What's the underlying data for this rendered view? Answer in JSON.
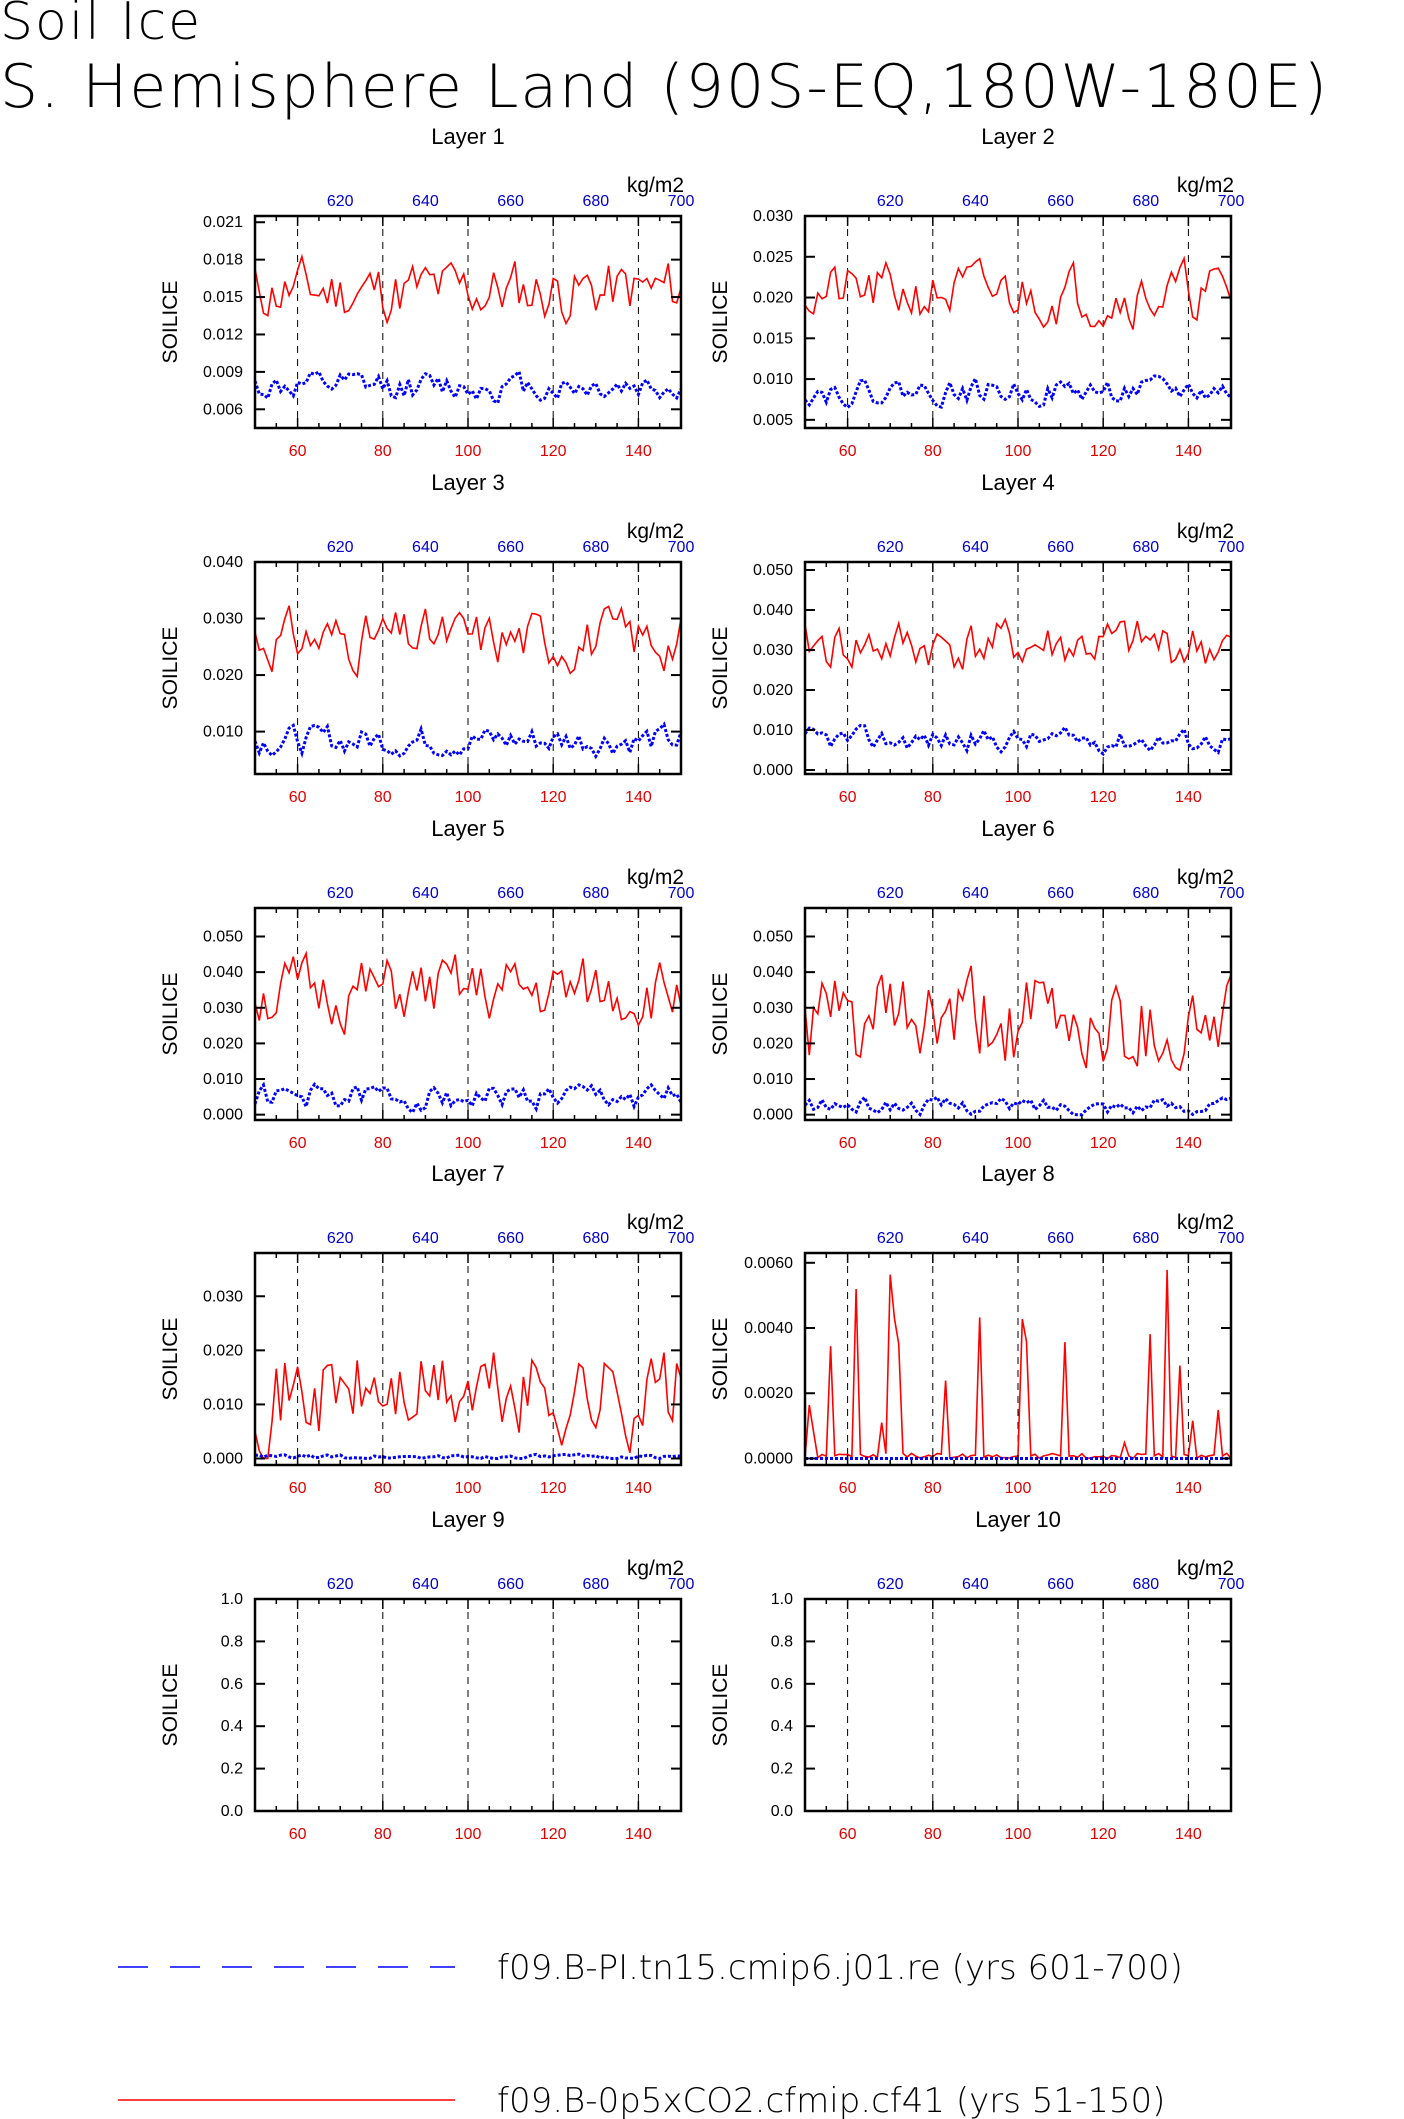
{
  "title_line1": "Soil Ice",
  "title_line2": "S. Hemisphere Land (90S-EQ,180W-180E)",
  "legend": [
    {
      "label": "f09.B-PI.tn15.cmip6.j01.re (yrs 601-700)",
      "color": "#0000ff",
      "style": "dashed"
    },
    {
      "label": "f09.B-0p5xCO2.cfmip.cf41 (yrs 51-150)",
      "color": "#ff0000",
      "style": "solid"
    }
  ],
  "chart_data": [
    {
      "type": "line",
      "title": "Layer 1",
      "ylabel": "SOILICE",
      "x2label": "kg/m2",
      "xlim": [
        50,
        150
      ],
      "x2lim": [
        600,
        700
      ],
      "ylim": [
        0.0045,
        0.0215
      ],
      "yticks": [
        "0.006",
        "0.009",
        "0.012",
        "0.015",
        "0.018",
        "0.021"
      ],
      "xticks": [
        "60",
        "80",
        "100",
        "120",
        "140"
      ],
      "x2ticks": [
        "620",
        "640",
        "660",
        "680",
        "700"
      ],
      "series": [
        {
          "color": "#ff0000",
          "base": 0.0155,
          "amp": 0.0025,
          "seed": 11
        },
        {
          "color": "#0000ff",
          "base": 0.0078,
          "amp": 0.0011,
          "seed": 12,
          "dashed": true
        }
      ]
    },
    {
      "type": "line",
      "title": "Layer 2",
      "ylabel": "SOILICE",
      "x2label": "kg/m2",
      "xlim": [
        50,
        150
      ],
      "x2lim": [
        600,
        700
      ],
      "ylim": [
        0.004,
        0.03
      ],
      "yticks": [
        "0.005",
        "0.010",
        "0.015",
        "0.020",
        "0.025",
        "0.030"
      ],
      "xticks": [
        "60",
        "80",
        "100",
        "120",
        "140"
      ],
      "x2ticks": [
        "620",
        "640",
        "660",
        "680",
        "700"
      ],
      "series": [
        {
          "color": "#ff0000",
          "base": 0.0205,
          "amp": 0.0035,
          "seed": 21
        },
        {
          "color": "#0000ff",
          "base": 0.0085,
          "amp": 0.0015,
          "seed": 22,
          "dashed": true
        }
      ]
    },
    {
      "type": "line",
      "title": "Layer 3",
      "ylabel": "SOILICE",
      "x2label": "kg/m2",
      "xlim": [
        50,
        150
      ],
      "x2lim": [
        600,
        700
      ],
      "ylim": [
        0.0025,
        0.04
      ],
      "yticks": [
        "0.010",
        "0.020",
        "0.030",
        "0.040"
      ],
      "xticks": [
        "60",
        "80",
        "100",
        "120",
        "140"
      ],
      "x2ticks": [
        "620",
        "640",
        "660",
        "680",
        "700"
      ],
      "series": [
        {
          "color": "#ff0000",
          "base": 0.0265,
          "amp": 0.005,
          "seed": 31
        },
        {
          "color": "#0000ff",
          "base": 0.0085,
          "amp": 0.0025,
          "seed": 32,
          "dashed": true
        }
      ]
    },
    {
      "type": "line",
      "title": "Layer 4",
      "ylabel": "SOILICE",
      "x2label": "kg/m2",
      "xlim": [
        50,
        150
      ],
      "x2lim": [
        600,
        700
      ],
      "ylim": [
        -0.001,
        0.052
      ],
      "yticks": [
        "0.000",
        "0.010",
        "0.020",
        "0.030",
        "0.040",
        "0.050"
      ],
      "xticks": [
        "60",
        "80",
        "100",
        "120",
        "140"
      ],
      "x2ticks": [
        "620",
        "640",
        "660",
        "680",
        "700"
      ],
      "series": [
        {
          "color": "#ff0000",
          "base": 0.031,
          "amp": 0.0065,
          "seed": 41
        },
        {
          "color": "#0000ff",
          "base": 0.0075,
          "amp": 0.0028,
          "seed": 42,
          "dashed": true
        }
      ]
    },
    {
      "type": "line",
      "title": "Layer 5",
      "ylabel": "SOILICE",
      "x2label": "kg/m2",
      "xlim": [
        50,
        150
      ],
      "x2lim": [
        600,
        700
      ],
      "ylim": [
        -0.0015,
        0.058
      ],
      "yticks": [
        "0.000",
        "0.010",
        "0.020",
        "0.030",
        "0.040",
        "0.050"
      ],
      "xticks": [
        "60",
        "80",
        "100",
        "120",
        "140"
      ],
      "x2ticks": [
        "620",
        "640",
        "660",
        "680",
        "700"
      ],
      "series": [
        {
          "color": "#ff0000",
          "base": 0.034,
          "amp": 0.0095,
          "seed": 51
        },
        {
          "color": "#0000ff",
          "base": 0.005,
          "amp": 0.0035,
          "seed": 52,
          "dashed": true
        }
      ]
    },
    {
      "type": "line",
      "title": "Layer 6",
      "ylabel": "SOILICE",
      "x2label": "kg/m2",
      "xlim": [
        50,
        150
      ],
      "x2lim": [
        600,
        700
      ],
      "ylim": [
        -0.0015,
        0.058
      ],
      "yticks": [
        "0.000",
        "0.010",
        "0.020",
        "0.030",
        "0.040",
        "0.050"
      ],
      "xticks": [
        "60",
        "80",
        "100",
        "120",
        "140"
      ],
      "x2ticks": [
        "620",
        "640",
        "660",
        "680",
        "700"
      ],
      "series": [
        {
          "color": "#ff0000",
          "base": 0.025,
          "amp": 0.014,
          "seed": 61
        },
        {
          "color": "#0000ff",
          "base": 0.0025,
          "amp": 0.0022,
          "seed": 62,
          "dashed": true
        }
      ]
    },
    {
      "type": "line",
      "title": "Layer 7",
      "ylabel": "SOILICE",
      "x2label": "kg/m2",
      "xlim": [
        50,
        150
      ],
      "x2lim": [
        600,
        700
      ],
      "ylim": [
        -0.0012,
        0.038
      ],
      "yticks": [
        "0.000",
        "0.010",
        "0.020",
        "0.030"
      ],
      "xticks": [
        "60",
        "80",
        "100",
        "120",
        "140"
      ],
      "x2ticks": [
        "620",
        "640",
        "660",
        "680",
        "700"
      ],
      "series": [
        {
          "color": "#ff0000",
          "base": 0.012,
          "amp": 0.009,
          "seed": 71
        },
        {
          "color": "#0000ff",
          "base": 0.0003,
          "amp": 0.0004,
          "seed": 72,
          "dashed": true
        }
      ]
    },
    {
      "type": "line",
      "title": "Layer 8",
      "ylabel": "SOILICE",
      "x2label": "kg/m2",
      "xlim": [
        50,
        150
      ],
      "x2lim": [
        600,
        700
      ],
      "ylim": [
        -0.0002,
        0.0063
      ],
      "yticks": [
        "0.0000",
        "0.0020",
        "0.0040",
        "0.0060"
      ],
      "xticks": [
        "60",
        "80",
        "100",
        "120",
        "140"
      ],
      "x2ticks": [
        "620",
        "640",
        "660",
        "680",
        "700"
      ],
      "series": [
        {
          "color": "#ff0000",
          "base": 0.0004,
          "amp": 0.0009,
          "seed": 81,
          "spiky": true
        },
        {
          "color": "#0000ff",
          "base": 0.0,
          "amp": 0.0,
          "seed": 82,
          "dashed": true
        }
      ]
    },
    {
      "type": "line",
      "title": "Layer 9",
      "ylabel": "SOILICE",
      "x2label": "kg/m2",
      "xlim": [
        50,
        150
      ],
      "x2lim": [
        600,
        700
      ],
      "ylim": [
        0.0,
        1.0
      ],
      "yticks": [
        "0.0",
        "0.2",
        "0.4",
        "0.6",
        "0.8",
        "1.0"
      ],
      "xticks": [
        "60",
        "80",
        "100",
        "120",
        "140"
      ],
      "x2ticks": [
        "620",
        "640",
        "660",
        "680",
        "700"
      ],
      "series": []
    },
    {
      "type": "line",
      "title": "Layer 10",
      "ylabel": "SOILICE",
      "x2label": "kg/m2",
      "xlim": [
        50,
        150
      ],
      "x2lim": [
        600,
        700
      ],
      "ylim": [
        0.0,
        1.0
      ],
      "yticks": [
        "0.0",
        "0.2",
        "0.4",
        "0.6",
        "0.8",
        "1.0"
      ],
      "xticks": [
        "60",
        "80",
        "100",
        "120",
        "140"
      ],
      "x2ticks": [
        "620",
        "640",
        "660",
        "680",
        "700"
      ],
      "series": []
    }
  ]
}
